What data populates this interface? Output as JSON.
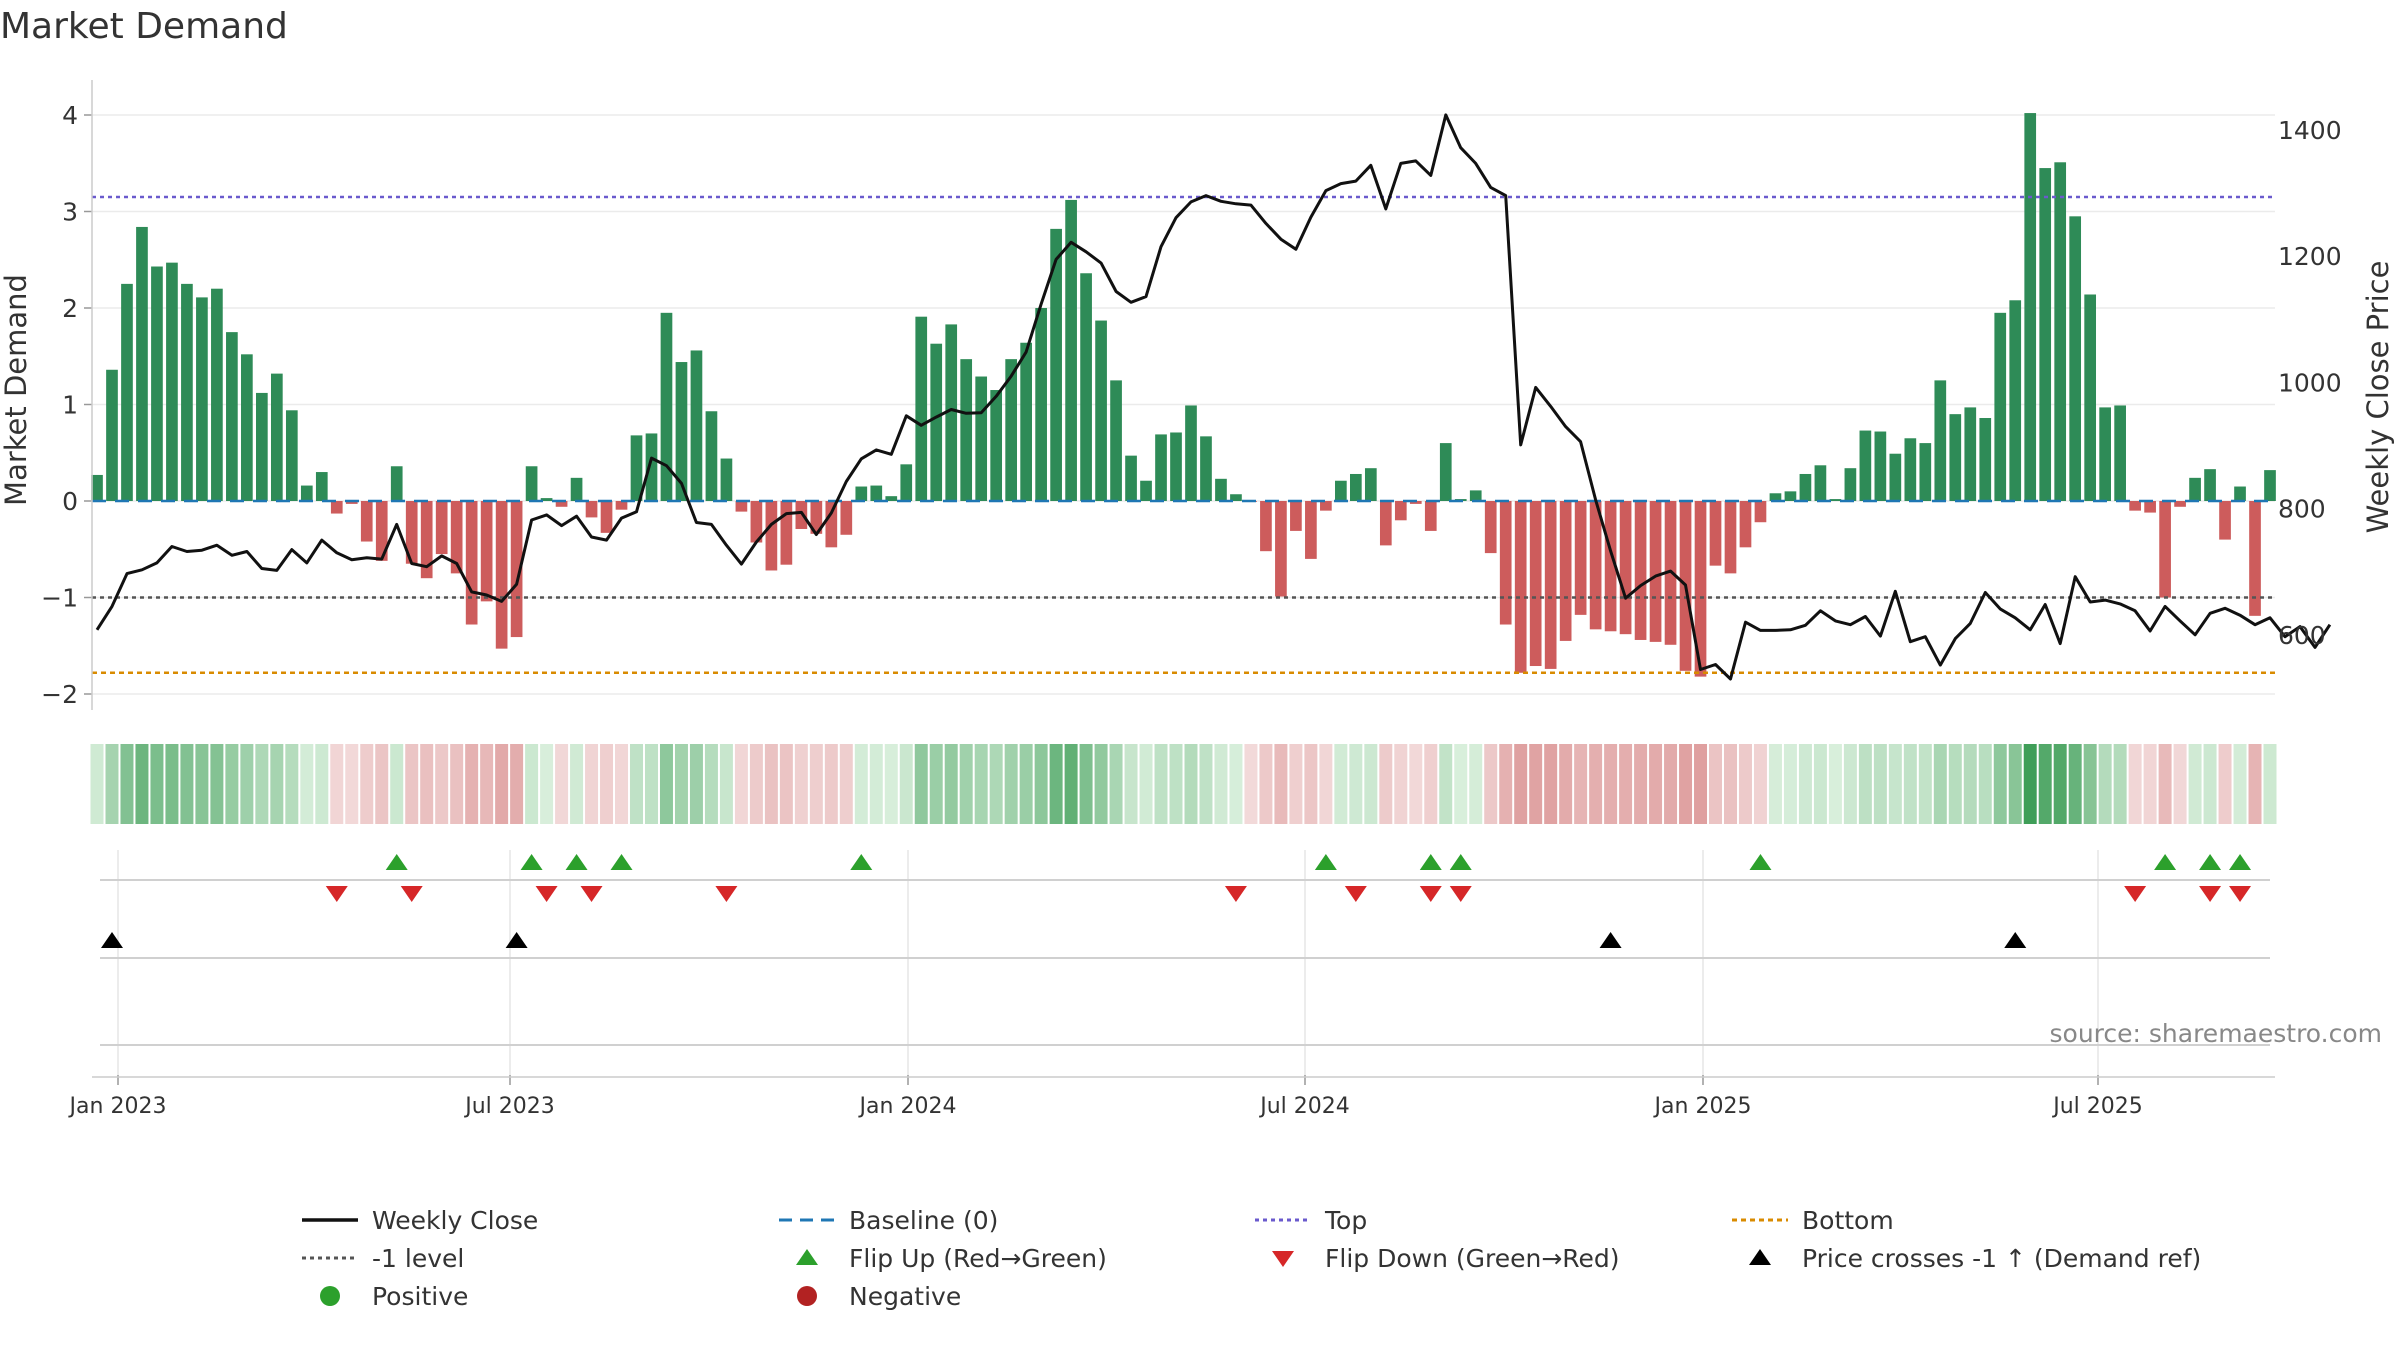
{
  "title": "Market Demand",
  "source": "source: sharemaestro.com",
  "colors": {
    "pos": "#2e8b57",
    "neg": "#cd5c5c",
    "price": "#111111",
    "baseline": "#1f77b4",
    "top": "#6a5acd",
    "minus1": "#555555",
    "bottom": "#d98b00",
    "flipup": "#2ca02c",
    "flipdown": "#d62728",
    "cross": "#000000"
  },
  "chart_data": {
    "type": "bar+line",
    "ylabel_left": "Market Demand",
    "ylabel_right": "Weekly Close Price",
    "yticks_left": [
      4,
      3,
      2,
      1,
      0,
      -1,
      -2
    ],
    "yticks_left_labels": [
      "4",
      "3",
      "2",
      "1",
      "0",
      "−1",
      "−2"
    ],
    "ylim_left": [
      -2.2,
      4.2
    ],
    "yticks_right": [
      1400,
      1200,
      1000,
      800,
      600
    ],
    "ylim_right": [
      510,
      1440
    ],
    "x_tick_labels": [
      "Jan 2023",
      "Jul 2023",
      "Jan 2024",
      "Jul 2024",
      "Jan 2025",
      "Jul 2025"
    ],
    "levels": {
      "top": 3.15,
      "minus1": -1.0,
      "bottom": -1.78
    },
    "demand": [
      0.27,
      1.36,
      2.25,
      2.84,
      2.43,
      2.47,
      2.25,
      2.11,
      2.2,
      1.75,
      1.52,
      1.12,
      1.32,
      0.94,
      0.16,
      0.3,
      -0.13,
      -0.03,
      -0.42,
      -0.62,
      0.36,
      -0.65,
      -0.8,
      -0.55,
      -0.75,
      -1.28,
      -1.04,
      -1.53,
      -1.41,
      0.36,
      0.03,
      -0.06,
      0.24,
      -0.17,
      -0.33,
      -0.09,
      0.68,
      0.7,
      1.95,
      1.44,
      1.56,
      0.93,
      0.44,
      -0.11,
      -0.43,
      -0.72,
      -0.66,
      -0.29,
      -0.34,
      -0.48,
      -0.35,
      0.15,
      0.16,
      0.05,
      0.38,
      1.91,
      1.63,
      1.83,
      1.47,
      1.29,
      1.15,
      1.47,
      1.64,
      2.0,
      2.82,
      3.12,
      2.36,
      1.87,
      1.25,
      0.47,
      0.21,
      0.69,
      0.71,
      0.99,
      0.67,
      0.23,
      0.07,
      -0.01,
      -0.52,
      -0.99,
      -0.31,
      -0.6,
      -0.1,
      0.21,
      0.28,
      0.34,
      -0.46,
      -0.2,
      -0.03,
      -0.31,
      0.6,
      0.02,
      0.11,
      -0.54,
      -1.28,
      -1.78,
      -1.71,
      -1.74,
      -1.45,
      -1.18,
      -1.33,
      -1.35,
      -1.38,
      -1.44,
      -1.46,
      -1.49,
      -1.76,
      -1.82,
      -0.67,
      -0.75,
      -0.48,
      -0.22,
      0.08,
      0.1,
      0.28,
      0.37,
      0.02,
      0.34,
      0.73,
      0.72,
      0.49,
      0.65,
      0.6,
      1.25,
      0.9,
      0.97,
      0.86,
      1.95,
      2.08,
      4.02,
      3.45,
      3.51,
      2.95,
      2.14,
      0.97,
      0.99,
      -0.1,
      -0.12,
      -1.0,
      -0.06,
      0.24,
      0.33,
      -0.4,
      0.15,
      -1.19,
      0.32
    ],
    "price": [
      608,
      645,
      697,
      703,
      714,
      740,
      732,
      734,
      742,
      726,
      732,
      705,
      702,
      735,
      714,
      750,
      730,
      719,
      722,
      720,
      775,
      713,
      708,
      725,
      713,
      668,
      663,
      653,
      680,
      782,
      790,
      773,
      788,
      755,
      750,
      785,
      795,
      880,
      868,
      840,
      778,
      775,
      742,
      712,
      747,
      775,
      792,
      794,
      759,
      793,
      843,
      879,
      893,
      886,
      947,
      932,
      945,
      957,
      951,
      952,
      978,
      1010,
      1048,
      1124,
      1195,
      1222,
      1207,
      1189,
      1144,
      1127,
      1136,
      1215,
      1261,
      1286,
      1296,
      1287,
      1283,
      1281,
      1252,
      1227,
      1211,
      1262,
      1304,
      1315,
      1319,
      1344,
      1275,
      1347,
      1351,
      1328,
      1424,
      1372,
      1347,
      1309,
      1296,
      901,
      992,
      962,
      930,
      906,
      814,
      733,
      658,
      678,
      693,
      701,
      679,
      545,
      553,
      530,
      620,
      607,
      607,
      608,
      615,
      638,
      622,
      616,
      629,
      598,
      669,
      589,
      597,
      552,
      594,
      618,
      667,
      641,
      627,
      608,
      648,
      586,
      692,
      652,
      655,
      649,
      638,
      606,
      645,
      622,
      600,
      634,
      642,
      631,
      616,
      627,
      597,
      613,
      580,
      616
    ],
    "flip_up_weeks": [
      20,
      29,
      32,
      35,
      51,
      82,
      89,
      91,
      111,
      138,
      141,
      143
    ],
    "flip_down_weeks": [
      16,
      21,
      30,
      33,
      42,
      76,
      84,
      89,
      91,
      136,
      141,
      143
    ],
    "cross_weeks": [
      1,
      28,
      101,
      128
    ]
  },
  "legend": [
    {
      "key": "price",
      "label": "Weekly Close"
    },
    {
      "key": "baseline",
      "label": "Baseline (0)"
    },
    {
      "key": "top",
      "label": "Top"
    },
    {
      "key": "bottom",
      "label": "Bottom"
    },
    {
      "key": "minus1",
      "label": "-1 level"
    },
    {
      "key": "flipup",
      "label": "Flip Up (Red→Green)"
    },
    {
      "key": "flipdown",
      "label": "Flip Down (Green→Red)"
    },
    {
      "key": "cross",
      "label": "Price crosses -1 ↑ (Demand ref)"
    },
    {
      "key": "positive",
      "label": "Positive"
    },
    {
      "key": "negative",
      "label": "Negative"
    }
  ]
}
